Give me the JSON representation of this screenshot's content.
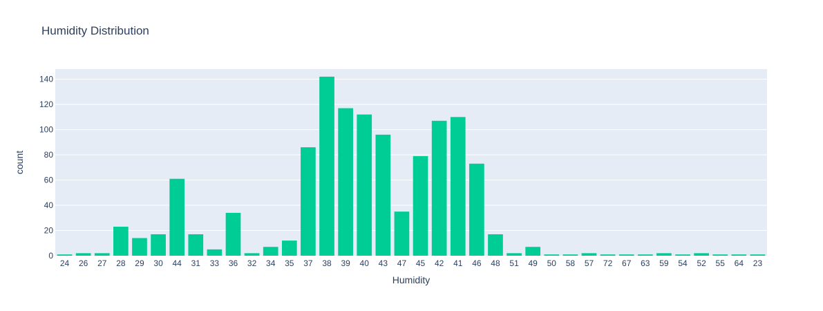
{
  "chart_data": {
    "type": "bar",
    "title": "Humidity Distribution",
    "xlabel": "Humidity",
    "ylabel": "count",
    "ylim": [
      0,
      148
    ],
    "yticks": [
      0,
      20,
      40,
      60,
      80,
      100,
      120,
      140
    ],
    "grid": true,
    "bar_color": "#00cc96",
    "plot_bg": "#e5ecf6",
    "categories": [
      "24",
      "26",
      "27",
      "28",
      "29",
      "30",
      "44",
      "31",
      "33",
      "36",
      "32",
      "34",
      "35",
      "37",
      "38",
      "39",
      "40",
      "43",
      "47",
      "45",
      "42",
      "41",
      "46",
      "48",
      "51",
      "49",
      "50",
      "58",
      "57",
      "72",
      "67",
      "63",
      "59",
      "54",
      "52",
      "55",
      "64",
      "23"
    ],
    "values": [
      1,
      2,
      2,
      23,
      14,
      17,
      61,
      17,
      5,
      34,
      2,
      7,
      12,
      86,
      142,
      117,
      112,
      96,
      35,
      79,
      107,
      110,
      73,
      17,
      2,
      7,
      1,
      1,
      2,
      1,
      1,
      1,
      2,
      1,
      2,
      1,
      1,
      1
    ]
  }
}
